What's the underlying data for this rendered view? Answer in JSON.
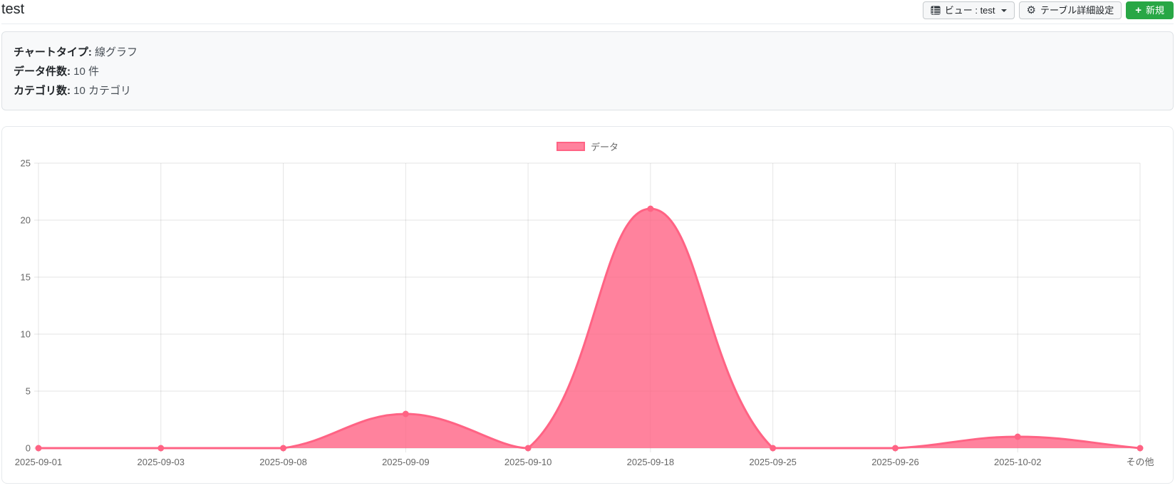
{
  "page": {
    "title": "test"
  },
  "toolbar": {
    "view_button": {
      "icon": "table-icon",
      "label": "ビュー : test"
    },
    "settings_button": {
      "icon": "gear-icon",
      "label": "テーブル詳細設定"
    },
    "new_button": {
      "icon": "plus-icon",
      "plus": "+",
      "label": "新規",
      "color": "#28a745"
    }
  },
  "summary": {
    "rows": [
      {
        "label": "チャートタイプ:",
        "value": "線グラフ"
      },
      {
        "label": "データ件数:",
        "value": "10 件"
      },
      {
        "label": "カテゴリ数:",
        "value": "10 カテゴリ"
      }
    ]
  },
  "chart_data": {
    "type": "area",
    "title": "",
    "categories": [
      "2025-09-01",
      "2025-09-03",
      "2025-09-08",
      "2025-09-09",
      "2025-09-10",
      "2025-09-18",
      "2025-09-25",
      "2025-09-26",
      "2025-10-02",
      "その他"
    ],
    "series": [
      {
        "name": "データ",
        "values": [
          0,
          0,
          0,
          3,
          0,
          21,
          0,
          0,
          1,
          0
        ]
      }
    ],
    "xlabel": "",
    "ylabel": "",
    "ylim": [
      0,
      25
    ],
    "yticks": [
      0,
      5,
      10,
      15,
      20,
      25
    ],
    "grid": true,
    "grid_color": "rgba(0,0,0,0.1)",
    "tick_color": "#666666",
    "legend_position": "top",
    "line_color": "#ff6384",
    "fill_color": "rgba(255,99,132,0.8)",
    "point_radius": 4.5,
    "line_width": 3,
    "tension": 0.4
  }
}
